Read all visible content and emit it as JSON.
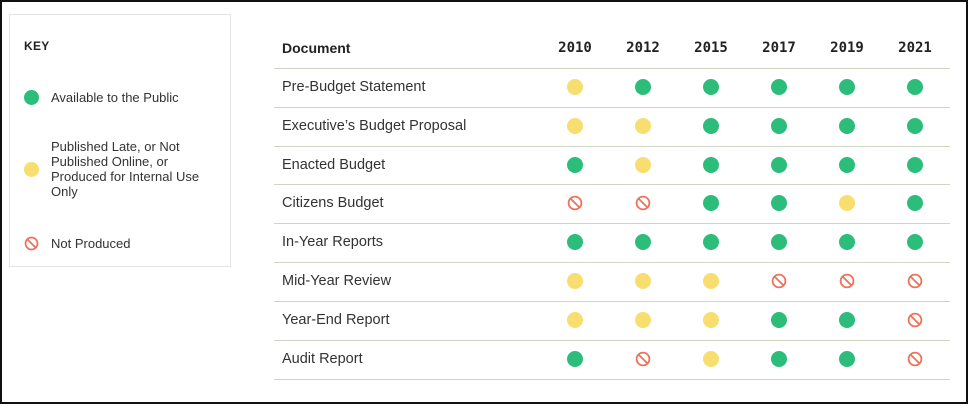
{
  "colors": {
    "available": "#2dbd7a",
    "late": "#f8de6e",
    "not_produced": "#ef7158"
  },
  "key": {
    "title": "KEY",
    "items": [
      {
        "status": "available",
        "label": "Available to the Public",
        "icon": "green-dot-icon"
      },
      {
        "status": "late",
        "label": "Published Late, or Not Published Online, or Produced for Internal Use Only",
        "icon": "yellow-dot-icon"
      },
      {
        "status": "not_produced",
        "label": "Not Produced",
        "icon": "prohibited-icon"
      }
    ]
  },
  "chart_data": {
    "type": "table",
    "column_header": "Document",
    "years": [
      "2010",
      "2012",
      "2015",
      "2017",
      "2019",
      "2021"
    ],
    "rows": [
      {
        "document": "Pre-Budget Statement",
        "values": [
          "late",
          "available",
          "available",
          "available",
          "available",
          "available"
        ]
      },
      {
        "document": "Executive’s Budget Proposal",
        "values": [
          "late",
          "late",
          "available",
          "available",
          "available",
          "available"
        ]
      },
      {
        "document": "Enacted Budget",
        "values": [
          "available",
          "late",
          "available",
          "available",
          "available",
          "available"
        ]
      },
      {
        "document": "Citizens Budget",
        "values": [
          "not_produced",
          "not_produced",
          "available",
          "available",
          "late",
          "available"
        ]
      },
      {
        "document": "In-Year Reports",
        "values": [
          "available",
          "available",
          "available",
          "available",
          "available",
          "available"
        ]
      },
      {
        "document": "Mid-Year Review",
        "values": [
          "late",
          "late",
          "late",
          "not_produced",
          "not_produced",
          "not_produced"
        ]
      },
      {
        "document": "Year-End Report",
        "values": [
          "late",
          "late",
          "late",
          "available",
          "available",
          "not_produced"
        ]
      },
      {
        "document": "Audit Report",
        "values": [
          "available",
          "not_produced",
          "late",
          "available",
          "available",
          "not_produced"
        ]
      }
    ]
  }
}
